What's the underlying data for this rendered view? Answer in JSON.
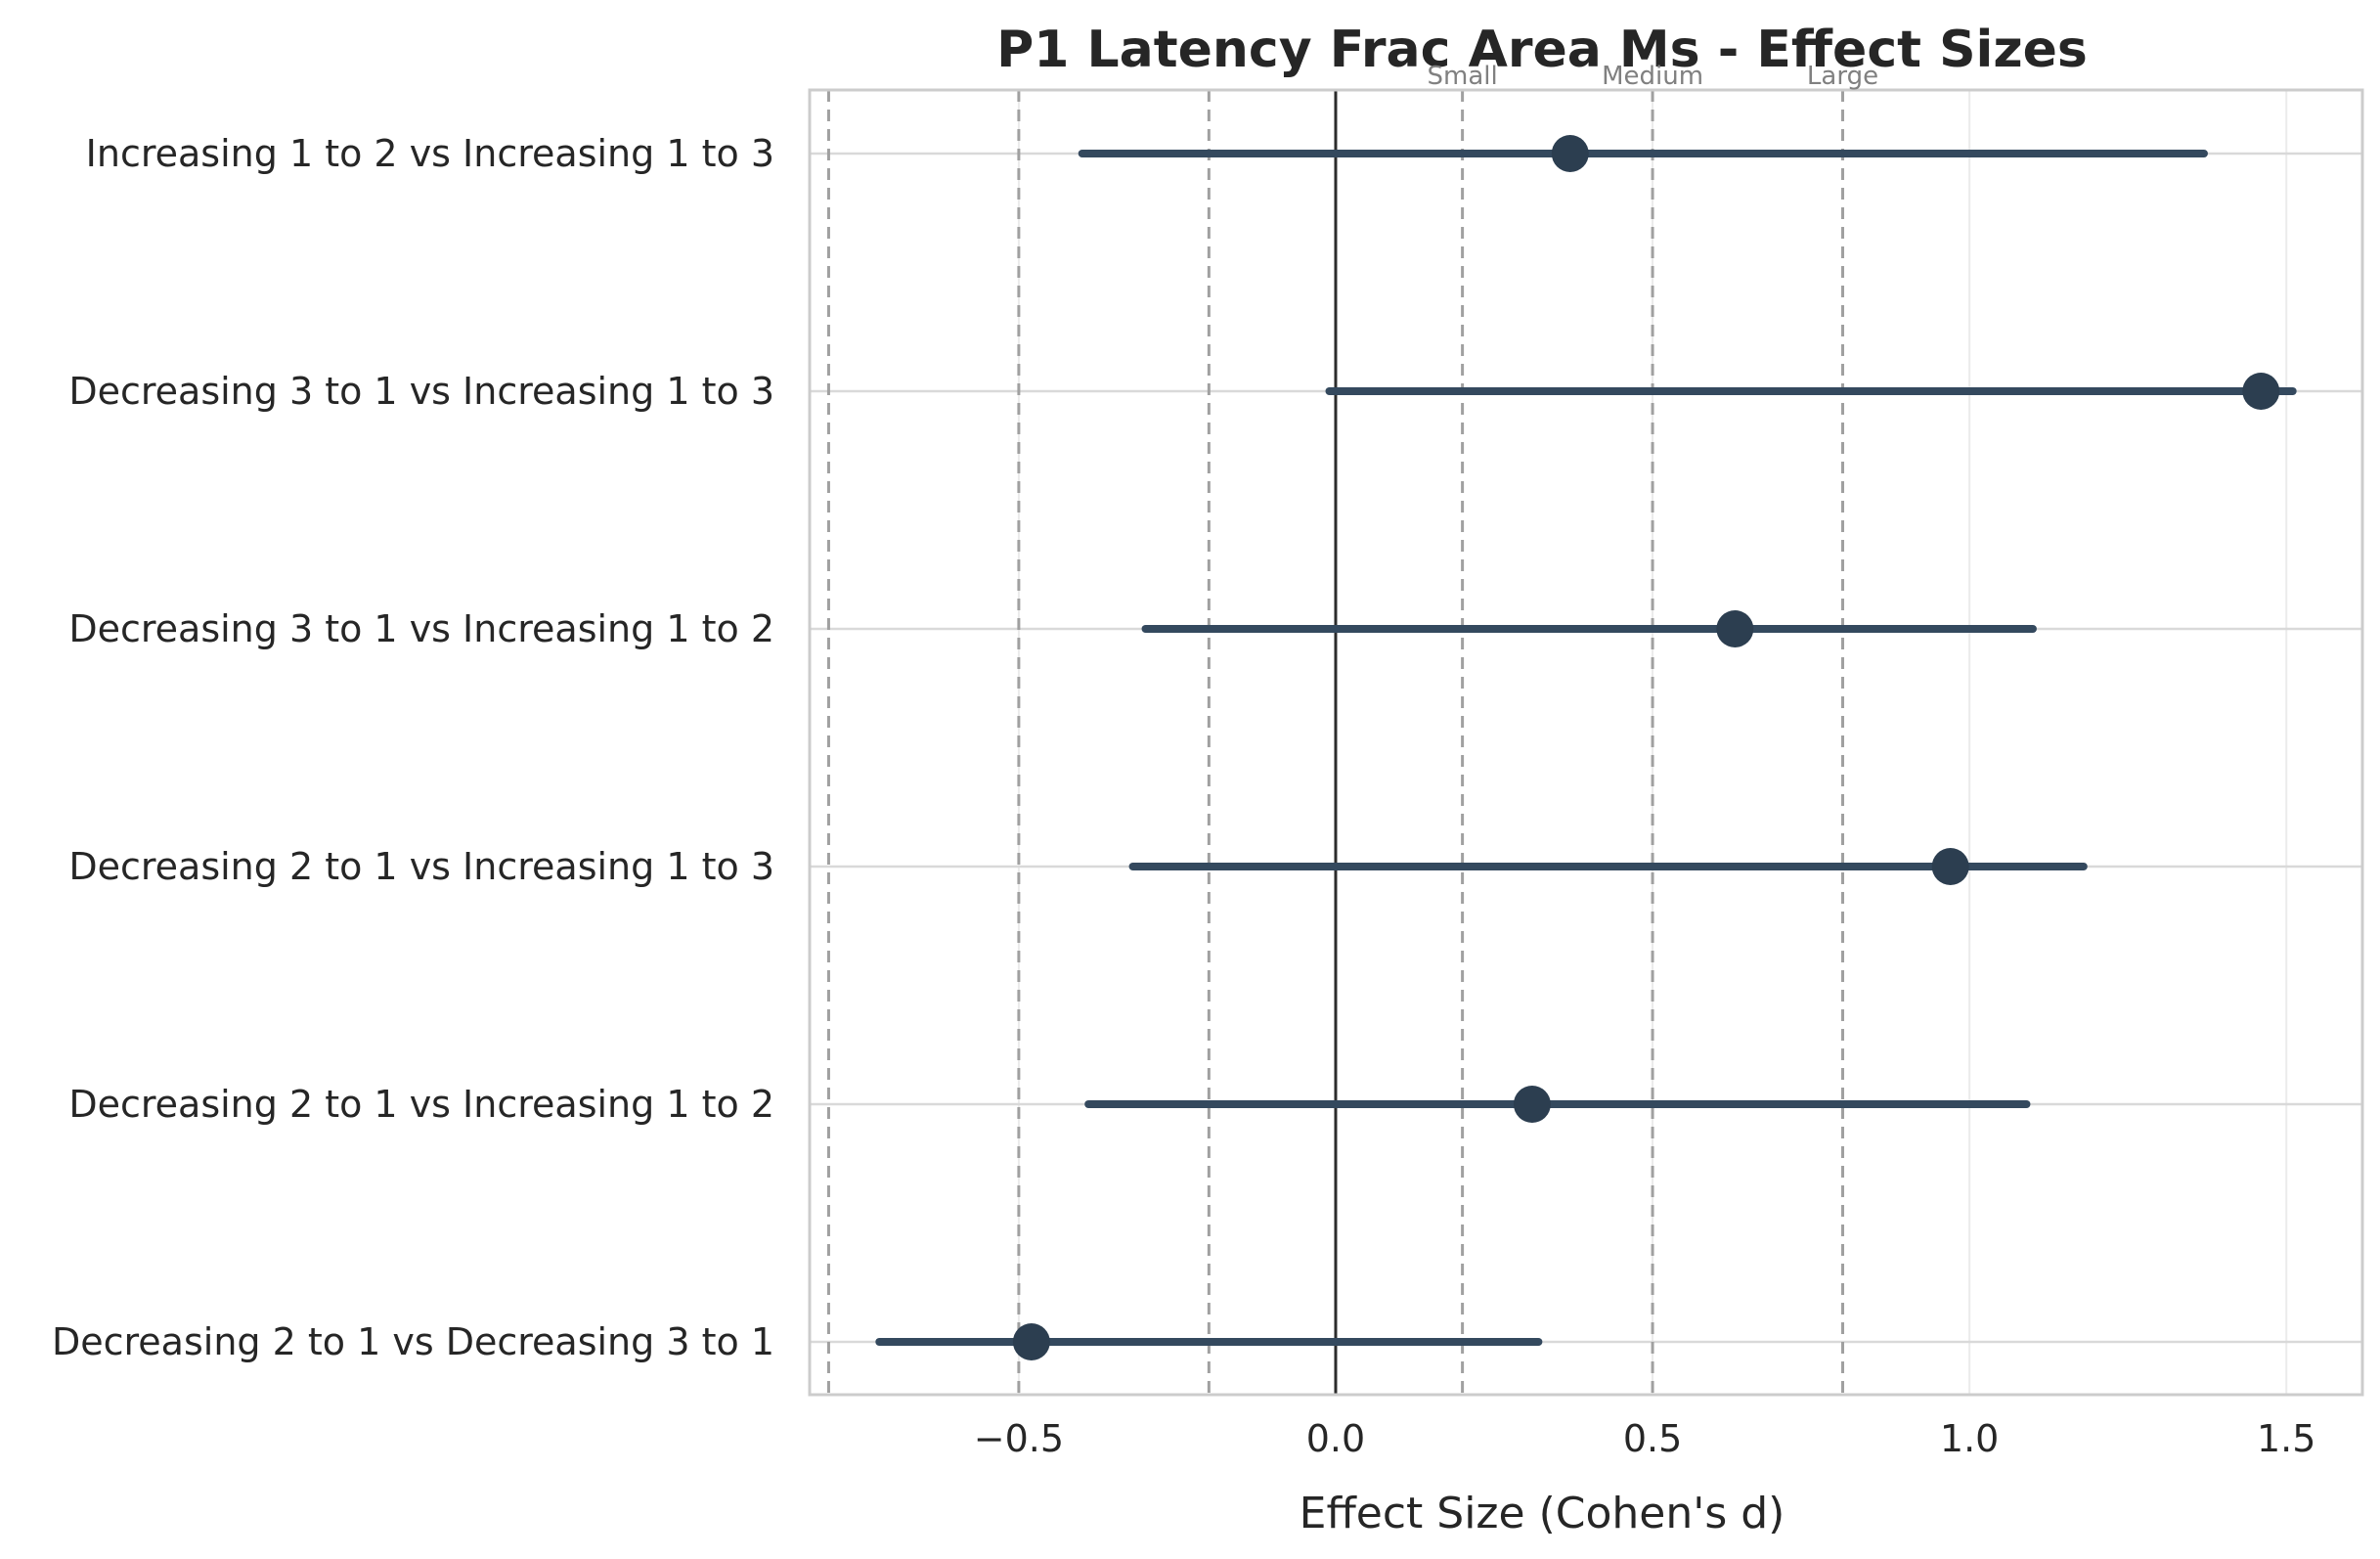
{
  "chart_data": {
    "type": "scatter",
    "title": "P1 Latency Frac Area Ms - Effect Sizes",
    "xlabel": "Effect Size (Cohen's d)",
    "ylabel": "",
    "xlim": [
      -0.83,
      1.62
    ],
    "x_ticks": [
      -0.5,
      0.0,
      0.5,
      1.0,
      1.5
    ],
    "x_tick_labels": [
      "−0.5",
      "0.0",
      "0.5",
      "1.0",
      "1.5"
    ],
    "grid": true,
    "categories": [
      "Increasing 1 to 2 vs Increasing 1 to 3",
      "Decreasing 3 to 1 vs Increasing 1 to 3",
      "Decreasing 3 to 1 vs Increasing 1 to 2",
      "Decreasing 2 to 1 vs Increasing 1 to 3",
      "Decreasing 2 to 1 vs Increasing 1 to 2",
      "Decreasing 2 to 1 vs Decreasing 3 to 1"
    ],
    "series": [
      {
        "effect": [
          0.37,
          1.46,
          0.63,
          0.97,
          0.31,
          -0.48
        ],
        "ci_low": [
          -0.4,
          -0.01,
          -0.3,
          -0.32,
          -0.39,
          -0.72
        ],
        "ci_high": [
          1.37,
          1.51,
          1.1,
          1.18,
          1.09,
          0.32
        ]
      }
    ],
    "reference_lines": [
      {
        "x": -0.8,
        "label": ""
      },
      {
        "x": -0.5,
        "label": ""
      },
      {
        "x": -0.2,
        "label": ""
      },
      {
        "x": 0.2,
        "label": "Small"
      },
      {
        "x": 0.5,
        "label": "Medium"
      },
      {
        "x": 0.8,
        "label": "Large"
      }
    ],
    "zero_line": 0.0,
    "colors": {
      "point": "#2c3e50",
      "ci_line": "#34495e",
      "zero_line": "#2c2c2c",
      "ref_line": "#a0a0a0",
      "grid": "#d9d9d9",
      "spine": "#cccccc"
    }
  }
}
